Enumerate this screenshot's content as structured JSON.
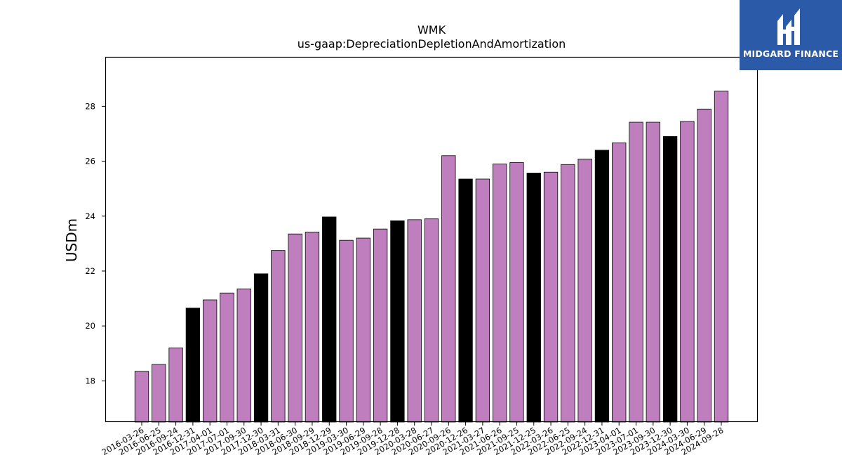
{
  "brand": {
    "name": "MIDGARD FINANCE",
    "bg_color": "#2b5aa8"
  },
  "chart_data": {
    "type": "bar",
    "title": "WMK",
    "subtitle": "us-gaap:DepreciationDepletionAndAmortization",
    "xlabel": "",
    "ylabel": "USDm",
    "ylim": [
      16.5,
      29.8
    ],
    "yticks": [
      18,
      20,
      22,
      24,
      26,
      28
    ],
    "grid": false,
    "colors": {
      "quarter": "#bf7fbf",
      "year_end": "#000000"
    },
    "categories": [
      "2016-03-26",
      "2016-06-25",
      "2016-09-24",
      "2016-12-31",
      "2017-04-01",
      "2017-07-01",
      "2017-09-30",
      "2017-12-30",
      "2018-03-31",
      "2018-06-30",
      "2018-09-29",
      "2018-12-29",
      "2019-03-30",
      "2019-06-29",
      "2019-09-28",
      "2019-12-28",
      "2020-03-28",
      "2020-06-27",
      "2020-09-26",
      "2020-12-26",
      "2021-03-27",
      "2021-06-26",
      "2021-09-25",
      "2021-12-25",
      "2022-03-26",
      "2022-06-25",
      "2022-09-24",
      "2022-12-31",
      "2023-04-01",
      "2023-07-01",
      "2023-09-30",
      "2023-12-30",
      "2024-03-30",
      "2024-06-29",
      "2024-09-28"
    ],
    "values": [
      18.35,
      18.6,
      19.2,
      20.65,
      20.95,
      21.2,
      21.35,
      21.9,
      22.75,
      23.35,
      23.42,
      23.97,
      23.12,
      23.2,
      23.53,
      23.83,
      23.87,
      23.9,
      26.2,
      25.35,
      25.35,
      25.9,
      25.95,
      25.57,
      25.6,
      25.88,
      26.08,
      26.4,
      26.67,
      27.42,
      27.42,
      26.9,
      27.45,
      27.9,
      28.55
    ],
    "highlight": [
      false,
      false,
      false,
      true,
      false,
      false,
      false,
      true,
      false,
      false,
      false,
      true,
      false,
      false,
      false,
      true,
      false,
      false,
      false,
      true,
      false,
      false,
      false,
      true,
      false,
      false,
      false,
      true,
      false,
      false,
      false,
      true,
      false,
      false,
      false
    ]
  }
}
